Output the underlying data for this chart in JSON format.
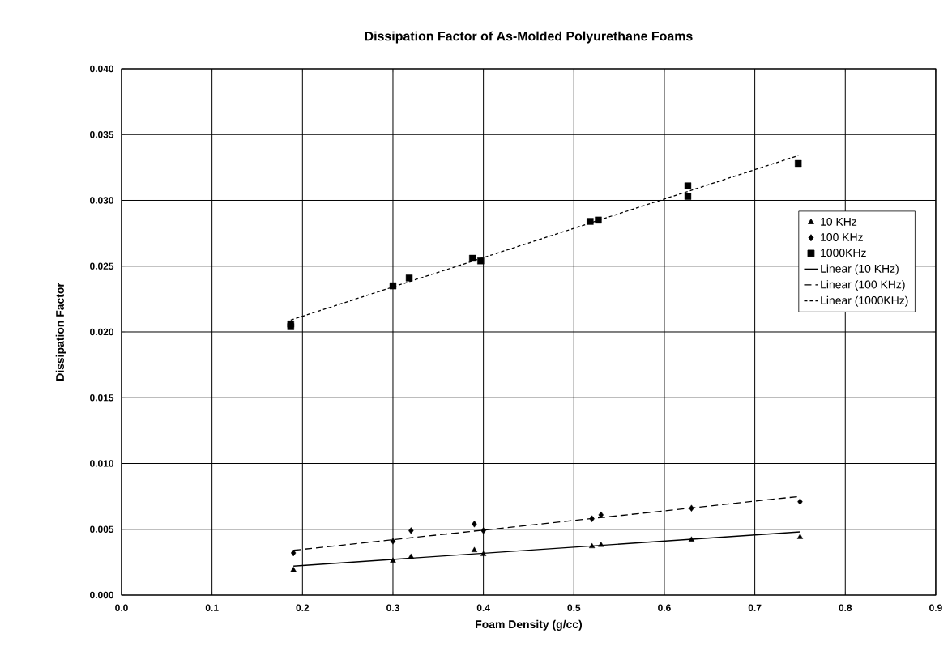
{
  "chart_data": {
    "type": "scatter",
    "title": "Dissipation Factor of As-Molded Polyurethane Foams",
    "xlabel": "Foam Density (g/cc)",
    "ylabel": "Dissipation Factor",
    "xlim": [
      0,
      0.9
    ],
    "ylim": [
      0,
      0.04
    ],
    "xticks": [
      {
        "value": 0,
        "label": "0.0"
      },
      {
        "value": 0.1,
        "label": "0.1"
      },
      {
        "value": 0.2,
        "label": "0.2"
      },
      {
        "value": 0.3,
        "label": "0.3"
      },
      {
        "value": 0.4,
        "label": "0.4"
      },
      {
        "value": 0.5,
        "label": "0.5"
      },
      {
        "value": 0.6,
        "label": "0.6"
      },
      {
        "value": 0.7,
        "label": "0.7"
      },
      {
        "value": 0.8,
        "label": "0.8"
      },
      {
        "value": 0.9,
        "label": "0.9"
      }
    ],
    "yticks": [
      {
        "value": 0,
        "label": "0.000"
      },
      {
        "value": 0.005,
        "label": "0.005"
      },
      {
        "value": 0.01,
        "label": "0.010"
      },
      {
        "value": 0.015,
        "label": "0.015"
      },
      {
        "value": 0.02,
        "label": "0.020"
      },
      {
        "value": 0.025,
        "label": "0.025"
      },
      {
        "value": 0.03,
        "label": "0.030"
      },
      {
        "value": 0.035,
        "label": "0.035"
      },
      {
        "value": 0.04,
        "label": "0.040"
      }
    ],
    "grid": true,
    "legend": "right",
    "series": [
      {
        "name": "10 KHz",
        "marker": "triangle",
        "color": "#000000",
        "x": [
          0.19,
          0.3,
          0.32,
          0.39,
          0.4,
          0.52,
          0.53,
          0.63,
          0.75
        ],
        "values": [
          0.0019,
          0.0026,
          0.0029,
          0.0034,
          0.0031,
          0.0037,
          0.0038,
          0.0042,
          0.0044
        ]
      },
      {
        "name": "100 KHz",
        "marker": "diamond",
        "color": "#000000",
        "x": [
          0.19,
          0.3,
          0.32,
          0.39,
          0.4,
          0.52,
          0.53,
          0.63,
          0.75
        ],
        "values": [
          0.0032,
          0.0041,
          0.0049,
          0.0054,
          0.0049,
          0.0058,
          0.0061,
          0.0066,
          0.0071
        ]
      },
      {
        "name": "1000KHz",
        "marker": "square",
        "color": "#000000",
        "x": [
          0.187,
          0.187,
          0.3,
          0.318,
          0.388,
          0.397,
          0.518,
          0.527,
          0.626,
          0.626,
          0.748
        ],
        "values": [
          0.0206,
          0.0204,
          0.0235,
          0.0241,
          0.0256,
          0.0254,
          0.0284,
          0.0285,
          0.0311,
          0.0303,
          0.0328
        ]
      },
      {
        "name": "Linear (10 KHz)",
        "type": "line",
        "line_style": "solid",
        "color": "#000000",
        "x": [
          0.19,
          0.75
        ],
        "values": [
          0.0022,
          0.0048
        ]
      },
      {
        "name": "Linear (100 KHz)",
        "type": "line",
        "line_style": "dashed",
        "color": "#000000",
        "x": [
          0.19,
          0.75
        ],
        "values": [
          0.0034,
          0.0075
        ]
      },
      {
        "name": "Linear (1000KHz)",
        "type": "line",
        "line_style": "dotted",
        "color": "#000000",
        "x": [
          0.187,
          0.748
        ],
        "values": [
          0.0209,
          0.0334
        ]
      }
    ]
  }
}
